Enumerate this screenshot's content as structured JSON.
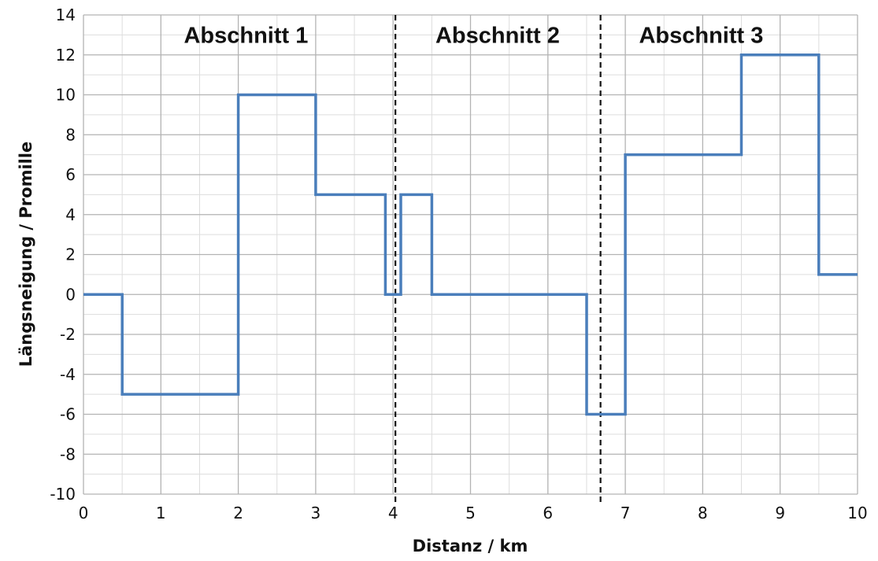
{
  "chart_data": {
    "type": "line",
    "step": true,
    "xlabel": "Distanz / km",
    "ylabel": "Längsneigung / Promille",
    "xlim": [
      0,
      10
    ],
    "ylim": [
      -10,
      14
    ],
    "x_ticks": [
      "0",
      "1",
      "2",
      "3",
      "4",
      "5",
      "6",
      "7",
      "8",
      "9",
      "10"
    ],
    "y_ticks": [
      "-10",
      "-8",
      "-6",
      "-4",
      "-2",
      "0",
      "2",
      "4",
      "6",
      "8",
      "10",
      "12",
      "14"
    ],
    "grid": {
      "major": true,
      "minor": true
    },
    "series": [
      {
        "color": "#4a7ebb",
        "x": [
          0,
          0.5,
          0.5,
          2,
          2,
          3,
          3,
          3.9,
          3.9,
          4.1,
          4.1,
          4.5,
          4.5,
          6.5,
          6.5,
          7,
          7,
          8.5,
          8.5,
          9.5,
          9.5,
          10
        ],
        "y": [
          0,
          0,
          -5,
          -5,
          10,
          10,
          5,
          5,
          0,
          0,
          5,
          5,
          0,
          0,
          -6,
          -6,
          7,
          7,
          12,
          12,
          1,
          1
        ]
      }
    ],
    "section_dividers": [
      4.03,
      6.68
    ],
    "section_labels": [
      {
        "text": "Abschnitt 1",
        "x": 2.1
      },
      {
        "text": "Abschnitt 2",
        "x": 5.35
      },
      {
        "text": "Abschnitt 3",
        "x": 7.98
      }
    ],
    "label_y": 13
  }
}
